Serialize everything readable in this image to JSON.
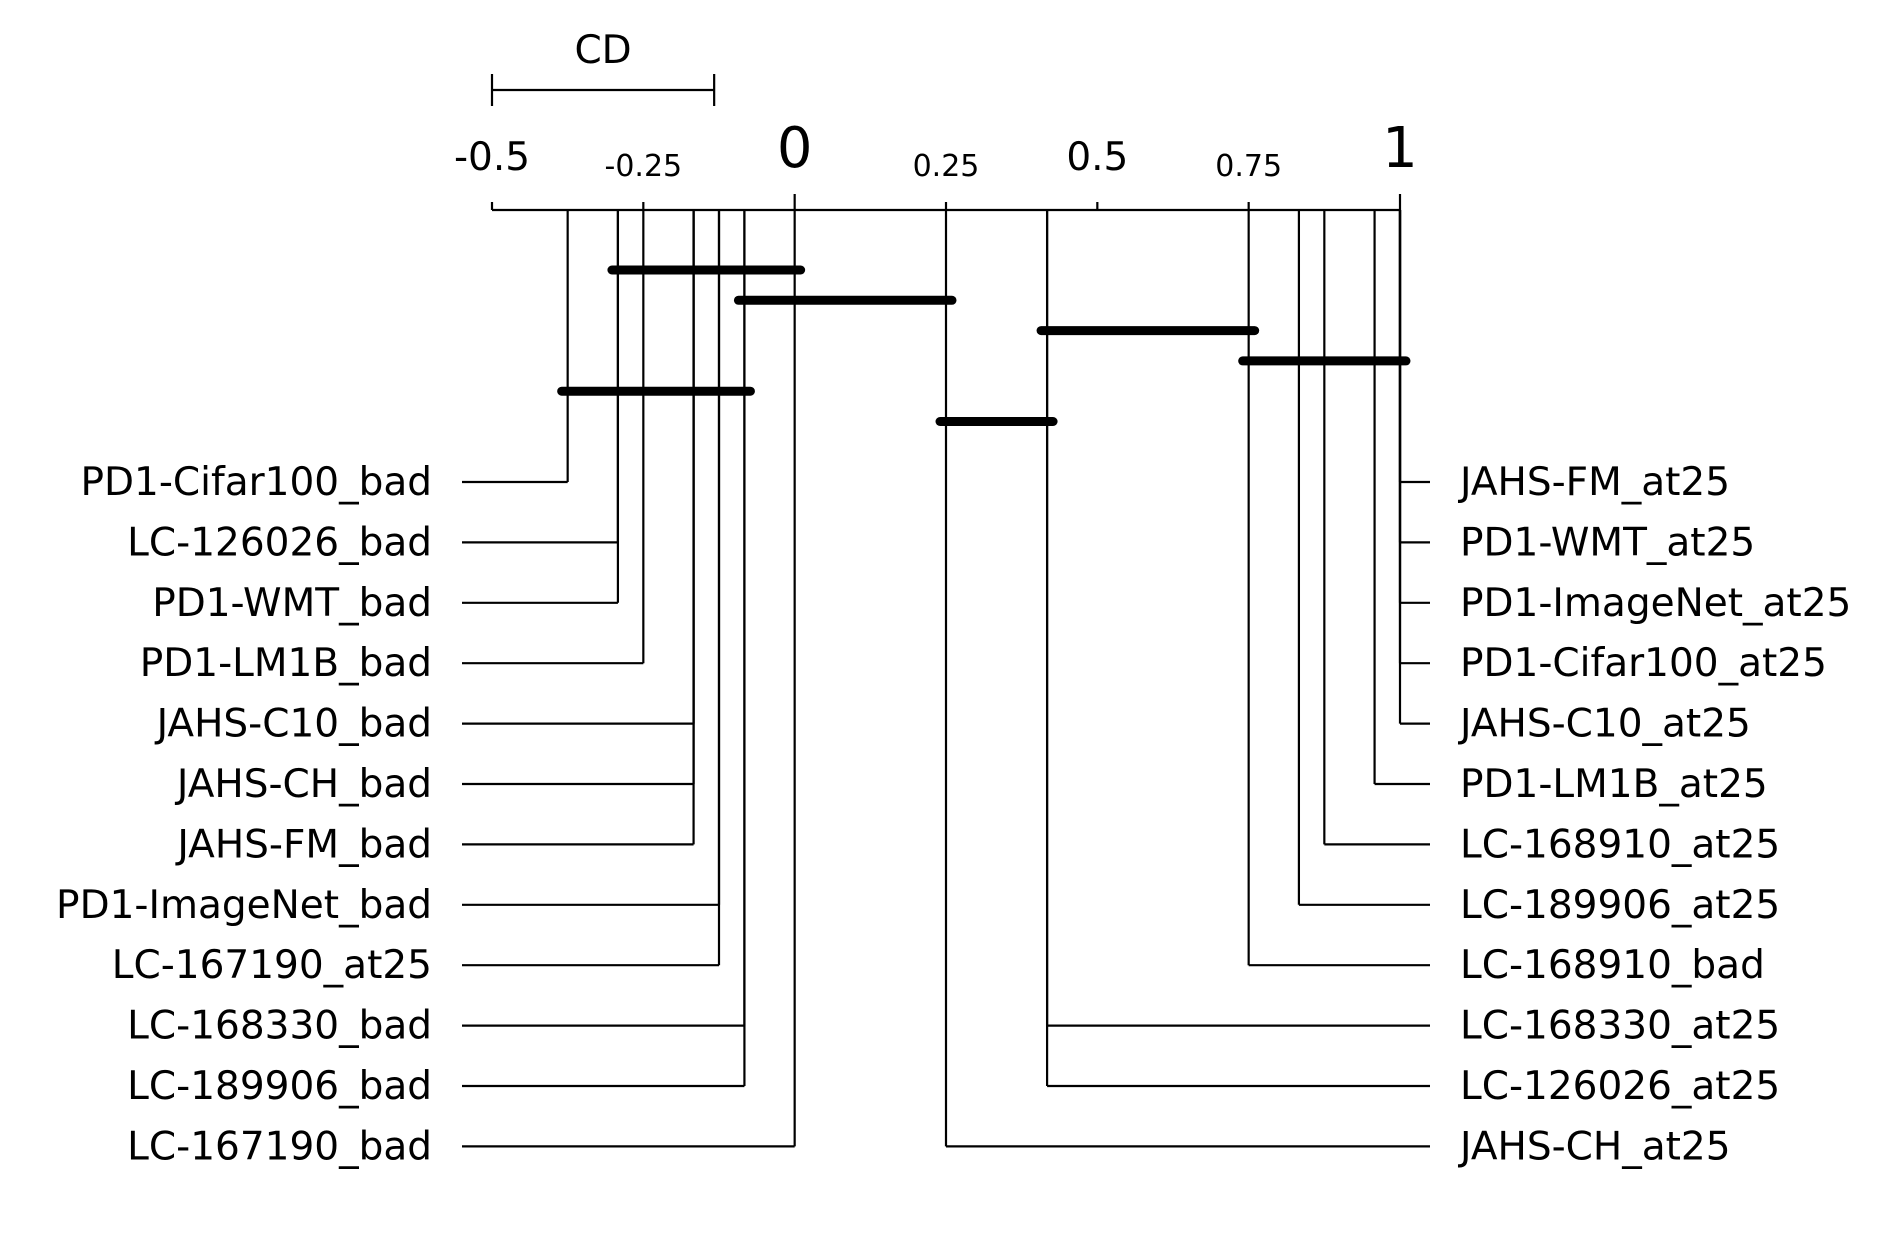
{
  "chart_data": {
    "type": "critical-difference-diagram",
    "cd_label": "CD",
    "cd_value": 0.367,
    "axis": {
      "min": -0.5,
      "max": 1,
      "ticks": [
        {
          "value": -0.5,
          "label": "-0.5",
          "size": "medium"
        },
        {
          "value": -0.25,
          "label": "-0.25",
          "size": "small"
        },
        {
          "value": 0,
          "label": "0",
          "size": "large"
        },
        {
          "value": 0.25,
          "label": "0.25",
          "size": "small"
        },
        {
          "value": 0.5,
          "label": "0.5",
          "size": "medium"
        },
        {
          "value": 0.75,
          "label": "0.75",
          "size": "small"
        },
        {
          "value": 1,
          "label": "1",
          "size": "large"
        }
      ]
    },
    "left_items": [
      {
        "name": "PD1-Cifar100_bad",
        "value": -0.375
      },
      {
        "name": "LC-126026_bad",
        "value": -0.292
      },
      {
        "name": "PD1-WMT_bad",
        "value": -0.292
      },
      {
        "name": "PD1-LM1B_bad",
        "value": -0.25
      },
      {
        "name": "JAHS-C10_bad",
        "value": -0.167
      },
      {
        "name": "JAHS-CH_bad",
        "value": -0.167
      },
      {
        "name": "JAHS-FM_bad",
        "value": -0.167
      },
      {
        "name": "PD1-ImageNet_bad",
        "value": -0.125
      },
      {
        "name": "LC-167190_at25",
        "value": -0.125
      },
      {
        "name": "LC-168330_bad",
        "value": -0.083
      },
      {
        "name": "LC-189906_bad",
        "value": -0.083
      },
      {
        "name": "LC-167190_bad",
        "value": 0.0
      }
    ],
    "right_items": [
      {
        "name": "JAHS-FM_at25",
        "value": 1.0
      },
      {
        "name": "PD1-WMT_at25",
        "value": 1.0
      },
      {
        "name": "PD1-ImageNet_at25",
        "value": 1.0
      },
      {
        "name": "PD1-Cifar100_at25",
        "value": 1.0
      },
      {
        "name": "JAHS-C10_at25",
        "value": 1.0
      },
      {
        "name": "PD1-LM1B_at25",
        "value": 0.958
      },
      {
        "name": "LC-168910_at25",
        "value": 0.875
      },
      {
        "name": "LC-189906_at25",
        "value": 0.833
      },
      {
        "name": "LC-168910_bad",
        "value": 0.75
      },
      {
        "name": "LC-168330_at25",
        "value": 0.417
      },
      {
        "name": "LC-126026_at25",
        "value": 0.417
      },
      {
        "name": "JAHS-CH_at25",
        "value": 0.25
      }
    ],
    "cliques": [
      {
        "start": -0.292,
        "end": 0.0
      },
      {
        "start": -0.083,
        "end": 0.25
      },
      {
        "start": 0.417,
        "end": 0.75
      },
      {
        "start": 0.75,
        "end": 1.0
      },
      {
        "start": -0.375,
        "end": -0.083
      },
      {
        "start": 0.25,
        "end": 0.417
      }
    ]
  }
}
